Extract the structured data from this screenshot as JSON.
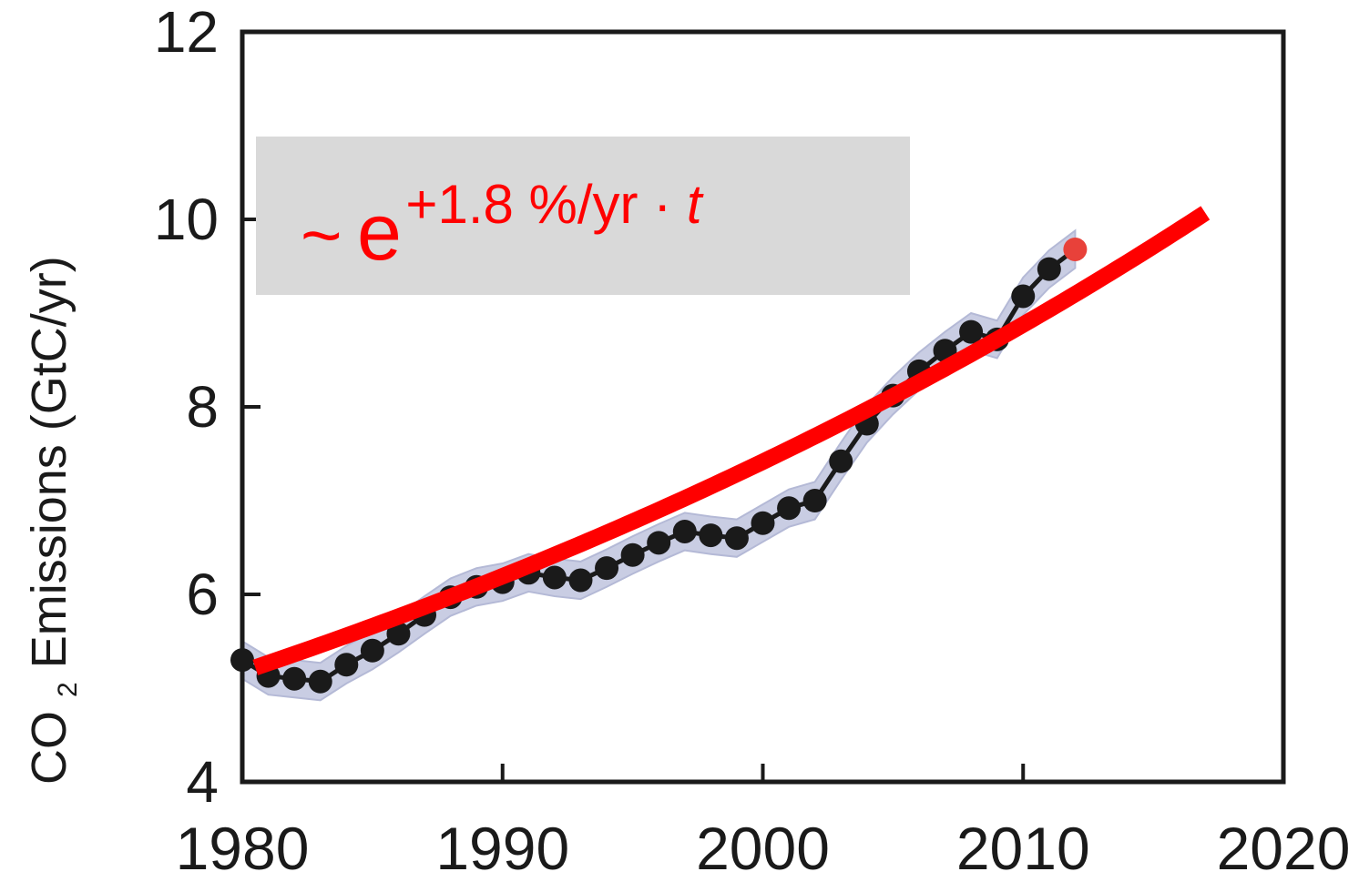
{
  "chart_data": {
    "type": "line",
    "ylabel_main": "CO",
    "ylabel_sub": "2",
    "ylabel_rest": " Emissions (GtC/yr)",
    "xlim": [
      1980,
      2020
    ],
    "ylim": [
      4,
      12
    ],
    "x_ticks": [
      1980,
      1990,
      2000,
      2010,
      2020
    ],
    "y_ticks": [
      4,
      6,
      8,
      10,
      12
    ],
    "grid": false,
    "annotation": {
      "tilde": "~",
      "base": "e",
      "exponent": "+1.8 %/yr · ",
      "variable": "t"
    },
    "colors": {
      "observed": "#1a1a1a",
      "band": "#c9cde3",
      "fit": "#ff0000",
      "last_point": "#e8413a",
      "annotation_box": "#d9d9d9",
      "annotation_text": "#ff0000"
    },
    "series": [
      {
        "x": [
          1980,
          1981,
          1982,
          1983,
          1984,
          1985,
          1986,
          1987,
          1988,
          1989,
          1990,
          1991,
          1992,
          1993,
          1994,
          1995,
          1996,
          1997,
          1998,
          1999,
          2000,
          2001,
          2002,
          2003,
          2004,
          2005,
          2006,
          2007,
          2008,
          2009,
          2010,
          2011,
          2012
        ],
        "values": [
          5.3,
          5.13,
          5.1,
          5.07,
          5.25,
          5.4,
          5.58,
          5.78,
          5.97,
          6.08,
          6.13,
          6.23,
          6.18,
          6.15,
          6.28,
          6.42,
          6.55,
          6.67,
          6.63,
          6.6,
          6.76,
          6.92,
          7.0,
          7.42,
          7.82,
          8.12,
          8.38,
          8.6,
          8.8,
          8.72,
          9.18,
          9.47,
          9.68
        ],
        "band_half_width": 0.2
      },
      {
        "x": [
          1980.5,
          2017
        ],
        "rate_per_year": 0.018,
        "start_value": 5.22
      }
    ]
  }
}
